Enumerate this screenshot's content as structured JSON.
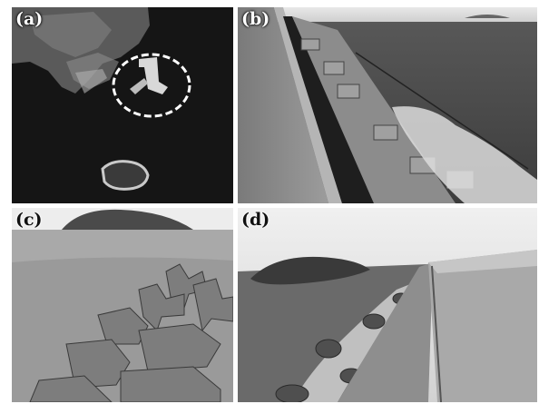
{
  "panels": {
    "a": {
      "label": "(a)"
    },
    "b": {
      "label": "(b)"
    },
    "c": {
      "label": "(c)"
    },
    "d": {
      "label": "(d)"
    }
  },
  "colors": {
    "aerial_sea": "#141414",
    "highlight_ellipse": "#ffffff",
    "concrete": "#9a9a9a",
    "sea_gray": "#6e6e6e"
  }
}
